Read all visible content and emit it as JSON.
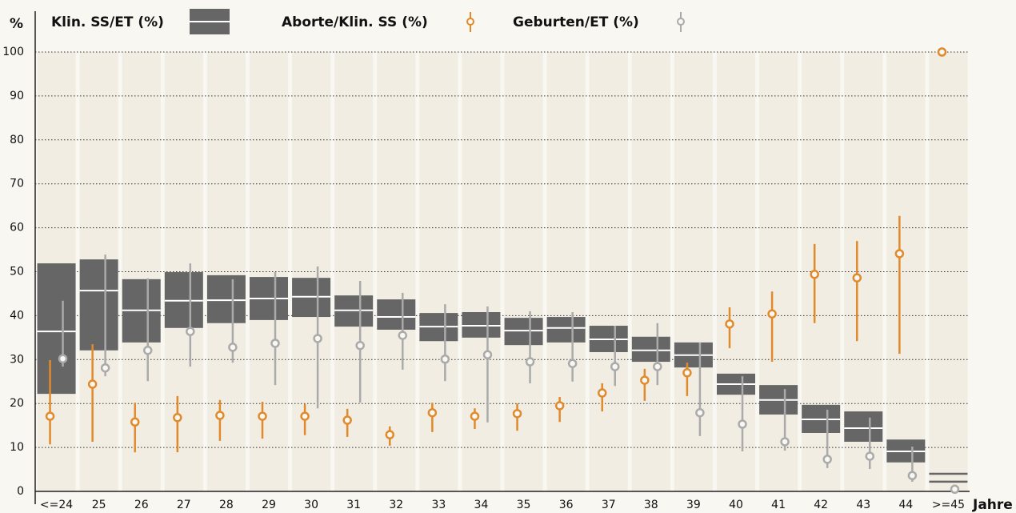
{
  "chart_data": {
    "type": "errorbar",
    "y_label": "%",
    "x_label": "Jahre",
    "categories": [
      "<=24",
      "25",
      "26",
      "27",
      "28",
      "29",
      "30",
      "31",
      "32",
      "33",
      "34",
      "35",
      "36",
      "37",
      "38",
      "39",
      "40",
      "41",
      "42",
      "43",
      "44",
      ">=45"
    ],
    "ylim": [
      0,
      100
    ],
    "yticks": [
      0,
      10,
      20,
      30,
      40,
      50,
      60,
      70,
      80,
      90,
      100
    ],
    "grid": true,
    "series": [
      {
        "name": "Klin. SS/ET (%)",
        "style": "box",
        "color": "#666666",
        "median": [
          36.4,
          45.7,
          41.2,
          43.4,
          43.5,
          43.9,
          44.3,
          41.2,
          39.7,
          37.5,
          37.7,
          36.6,
          37.2,
          34.6,
          32.1,
          31.0,
          24.4,
          20.8,
          16.4,
          14.4,
          9.1,
          3.1
        ],
        "low": [
          22.2,
          32.1,
          33.9,
          37.2,
          38.3,
          39.0,
          39.7,
          37.5,
          36.8,
          34.2,
          35.0,
          33.3,
          33.9,
          31.7,
          29.5,
          28.2,
          22.0,
          17.5,
          13.3,
          11.3,
          6.6,
          2.2
        ],
        "high": [
          51.9,
          52.8,
          48.3,
          49.9,
          49.2,
          48.8,
          48.6,
          44.6,
          43.7,
          40.6,
          40.8,
          39.5,
          39.7,
          37.7,
          35.2,
          33.9,
          26.8,
          24.2,
          19.7,
          18.2,
          11.8,
          4.0
        ]
      },
      {
        "name": "Aborte/Klin. SS (%)",
        "style": "point",
        "color": "#e08a2c",
        "values": [
          17.1,
          24.4,
          15.8,
          16.8,
          17.3,
          17.1,
          17.1,
          16.2,
          12.9,
          17.9,
          17.1,
          17.7,
          19.5,
          22.4,
          25.3,
          27.0,
          38.1,
          40.4,
          49.4,
          48.6,
          54.1,
          100
        ],
        "lower": [
          10.7,
          11.3,
          8.9,
          8.9,
          11.5,
          12.0,
          12.8,
          12.4,
          10.4,
          13.5,
          14.2,
          13.8,
          15.8,
          18.2,
          20.6,
          21.7,
          32.6,
          29.5,
          38.3,
          34.2,
          31.3,
          null
        ],
        "upper": [
          29.9,
          33.5,
          20.2,
          21.7,
          20.8,
          20.4,
          19.9,
          18.8,
          14.8,
          20.2,
          18.9,
          20.0,
          21.5,
          24.6,
          27.9,
          29.3,
          41.9,
          45.5,
          56.3,
          57.0,
          62.7,
          null
        ]
      },
      {
        "name": "Geburten/ET (%)",
        "style": "point",
        "color": "#aaaaaa",
        "values": [
          30.2,
          28.1,
          32.1,
          36.4,
          32.8,
          33.7,
          34.8,
          33.2,
          35.5,
          30.1,
          31.1,
          29.5,
          29.1,
          28.4,
          28.4,
          17.9,
          15.3,
          11.3,
          7.3,
          8.0,
          3.6,
          0.5
        ],
        "lower": [
          28.4,
          26.2,
          25.1,
          28.4,
          29.3,
          24.2,
          18.9,
          20.2,
          27.7,
          25.1,
          15.7,
          24.6,
          25.0,
          24.0,
          24.2,
          12.6,
          9.1,
          9.3,
          5.3,
          5.1,
          2.2,
          null
        ],
        "upper": [
          43.4,
          53.9,
          48.5,
          51.9,
          48.3,
          49.9,
          51.2,
          47.9,
          45.2,
          42.6,
          42.1,
          41.0,
          40.8,
          37.7,
          38.3,
          33.9,
          26.2,
          23.3,
          18.6,
          16.8,
          10.2,
          null
        ]
      }
    ]
  }
}
